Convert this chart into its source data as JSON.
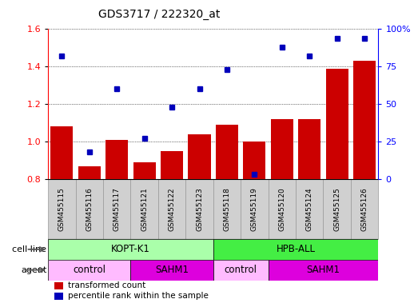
{
  "title": "GDS3717 / 222320_at",
  "samples": [
    "GSM455115",
    "GSM455116",
    "GSM455117",
    "GSM455121",
    "GSM455122",
    "GSM455123",
    "GSM455118",
    "GSM455119",
    "GSM455120",
    "GSM455124",
    "GSM455125",
    "GSM455126"
  ],
  "transformed_count": [
    1.08,
    0.87,
    1.01,
    0.89,
    0.95,
    1.04,
    1.09,
    1.0,
    1.12,
    1.12,
    1.39,
    1.43
  ],
  "percentile_rank": [
    82,
    18,
    60,
    27,
    48,
    60,
    73,
    3,
    88,
    82,
    94,
    94
  ],
  "ylim_left": [
    0.8,
    1.6
  ],
  "ylim_right": [
    0,
    100
  ],
  "yticks_left": [
    0.8,
    1.0,
    1.2,
    1.4,
    1.6
  ],
  "yticks_right": [
    0,
    25,
    50,
    75,
    100
  ],
  "bar_color": "#cc0000",
  "dot_color": "#0000bb",
  "grid_color": "#000000",
  "cell_line_groups": [
    {
      "label": "KOPT-K1",
      "start": 0,
      "end": 6,
      "color": "#aaffaa"
    },
    {
      "label": "HPB-ALL",
      "start": 6,
      "end": 12,
      "color": "#44ee44"
    }
  ],
  "agent_groups": [
    {
      "label": "control",
      "start": 0,
      "end": 3,
      "color": "#ffbbff"
    },
    {
      "label": "SAHM1",
      "start": 3,
      "end": 6,
      "color": "#dd00dd"
    },
    {
      "label": "control",
      "start": 6,
      "end": 8,
      "color": "#ffbbff"
    },
    {
      "label": "SAHM1",
      "start": 8,
      "end": 12,
      "color": "#dd00dd"
    }
  ],
  "cell_line_label": "cell line",
  "agent_label": "agent",
  "legend_bar": "transformed count",
  "legend_dot": "percentile rank within the sample",
  "tick_bg_color": "#d0d0d0",
  "tick_border_color": "#999999"
}
